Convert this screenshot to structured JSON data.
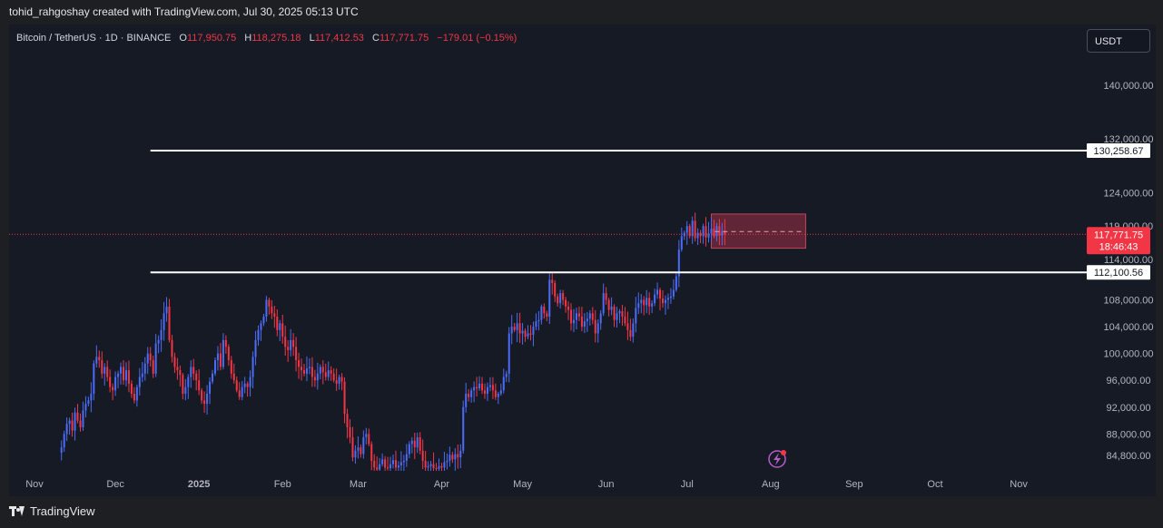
{
  "header": {
    "attribution": "tohid_rahgoshay created with TradingView.com, Jul 30, 2025 05:13 UTC"
  },
  "legend": {
    "symbol": "Bitcoin / TetherUS · 1D · BINANCE",
    "open_label": "O",
    "open": "117,950.75",
    "high_label": "H",
    "high": "118,275.18",
    "low_label": "L",
    "low": "117,412.53",
    "close_label": "C",
    "close": "117,771.75",
    "change": "−179.01 (−0.15%)"
  },
  "currency_button": "USDT",
  "footer": {
    "brand": "TradingView"
  },
  "colors": {
    "up": "#4a6cf7",
    "down": "#f23645",
    "background": "#161a25",
    "level_line": "#ffffff",
    "price_label": "#f23645",
    "box_fill": "#7a2a3c"
  },
  "chart_data": {
    "type": "candlestick",
    "title": "Bitcoin / TetherUS · 1D · BINANCE",
    "ylim": [
      82500,
      148000
    ],
    "y_ticks": [
      "140,000.00",
      "132,000.00",
      "124,000.00",
      "119,000.00",
      "114,000.00",
      "108,000.00",
      "104,000.00",
      "100,000.00",
      "96,000.00",
      "92,000.00",
      "88,000.00",
      "84,800.00"
    ],
    "y_tick_values": [
      140000,
      132000,
      124000,
      119000,
      114000,
      108000,
      104000,
      100000,
      96000,
      92000,
      88000,
      84800
    ],
    "x_ticks": [
      "Nov",
      "Dec",
      "2025",
      "Feb",
      "Mar",
      "Apr",
      "May",
      "Jun",
      "Jul",
      "Aug",
      "Sep",
      "Oct",
      "Nov"
    ],
    "x_tick_days": [
      0,
      30,
      61,
      92,
      120,
      151,
      181,
      212,
      242,
      273,
      304,
      334,
      365
    ],
    "grid": false,
    "horizontal_levels": [
      {
        "price": 130258.67,
        "label": "130,258.67",
        "start_day": 43
      },
      {
        "price": 112100.56,
        "label": 112100.56,
        "start_day": 43
      }
    ],
    "level_labels": [
      "130,258.67",
      "112,100.56"
    ],
    "current_price": {
      "value": 117771.75,
      "label": "117,771.75",
      "countdown": "18:46:43"
    },
    "range_box": {
      "day_start": 251,
      "day_end": 286,
      "high": 120800,
      "low": 115700
    },
    "close_series": {
      "start_day": 10,
      "values": [
        86000,
        88000,
        89500,
        90000,
        88500,
        91200,
        90000,
        89000,
        91500,
        92500,
        93000,
        94000,
        98500,
        99500,
        99000,
        97000,
        98000,
        96500,
        95000,
        94500,
        96500,
        97000,
        98000,
        96000,
        97500,
        95500,
        94000,
        93000,
        95000,
        96500,
        97000,
        98500,
        100000,
        99000,
        97000,
        101500,
        102000,
        103500,
        106000,
        107000,
        102000,
        99500,
        98000,
        97500,
        96800,
        94000,
        95000,
        96500,
        98000,
        97000,
        96000,
        94500,
        93000,
        92500,
        94000,
        95800,
        97000,
        99000,
        100000,
        98000,
        102000,
        101000,
        99000,
        97000,
        96000,
        94500,
        93500,
        95000,
        95500,
        95000,
        96500,
        99500,
        102000,
        103500,
        104500,
        105500,
        108000,
        107000,
        106000,
        105500,
        103500,
        104500,
        102500,
        101000,
        100500,
        102000,
        101000,
        99000,
        98000,
        97500,
        97000,
        97800,
        98000,
        96500,
        96000,
        97000,
        98000,
        97200,
        96500,
        97500,
        97000,
        96000,
        95500,
        96500,
        95800,
        91000,
        89000,
        87500,
        84500,
        85500,
        86000,
        85000,
        87500,
        88000,
        86500,
        84000,
        83000,
        82700,
        83500,
        84200,
        83000,
        82900,
        83500,
        84100,
        83000,
        83300,
        83800,
        84000,
        85000,
        86500,
        87000,
        86000,
        87500,
        85500,
        84000,
        83000,
        83200,
        83500,
        82900,
        82800,
        83200,
        83000,
        83800,
        84000,
        84900,
        84200,
        85000,
        84500,
        85500,
        92000,
        94000,
        93500,
        94500,
        95000,
        94800,
        95500,
        94500,
        94000,
        95000,
        95300,
        94500,
        93500,
        94000,
        94500,
        96500,
        97000,
        103000,
        104000,
        103500,
        104500,
        103000,
        103400,
        102500,
        103000,
        102800,
        104000,
        104800,
        105000,
        107000,
        106000,
        105500,
        111000,
        110500,
        108500,
        107500,
        109000,
        108000,
        107000,
        106500,
        104500,
        105000,
        106000,
        105500,
        104000,
        104800,
        105200,
        106000,
        105000,
        103000,
        104500,
        106000,
        109000,
        108000,
        106500,
        107000,
        105000,
        106000,
        106300,
        105500,
        104500,
        103500,
        102500,
        104500,
        106800,
        107500,
        108000,
        107200,
        108300,
        107000,
        107500,
        108800,
        109500,
        108200,
        107500,
        108000,
        108300,
        108500,
        109500,
        111500,
        115500,
        117500,
        118000,
        119000,
        117500,
        119800,
        117200,
        118000,
        117500,
        119000,
        117300,
        117900,
        118600,
        117500,
        119000,
        117600,
        118300,
        117800
      ]
    }
  }
}
